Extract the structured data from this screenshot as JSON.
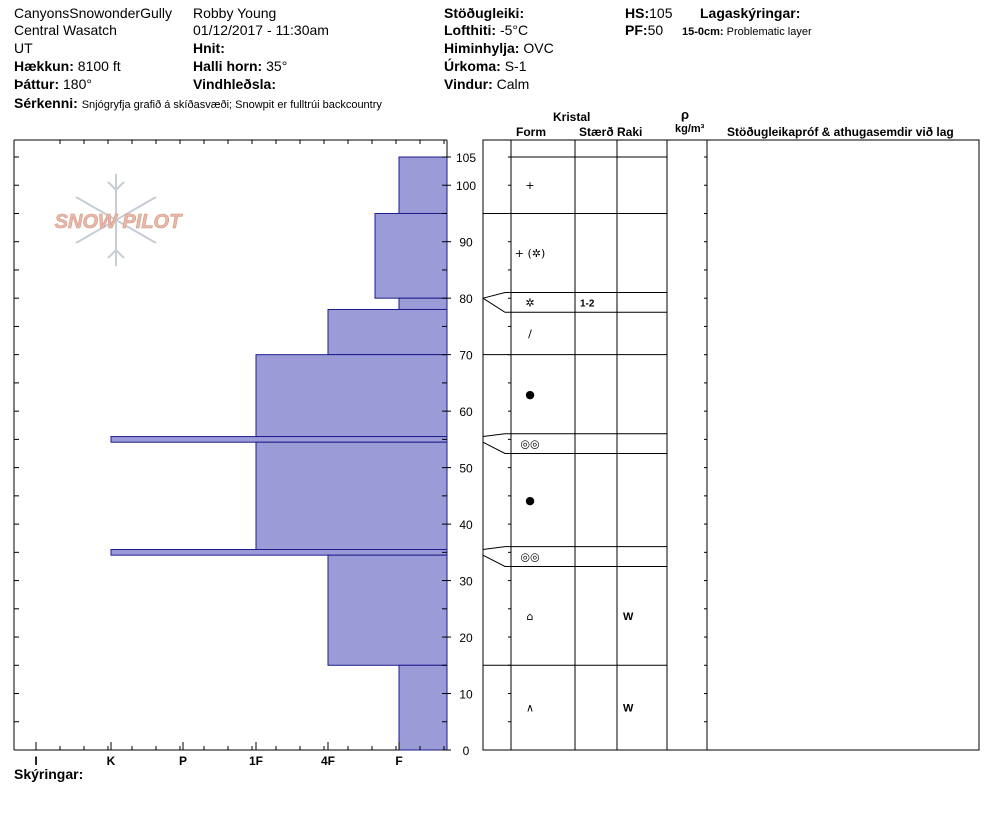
{
  "header": {
    "location": "CanyonsSnowonderGully",
    "range": "Central Wasatch",
    "state": "UT",
    "elevation_label": "Hækkun:",
    "elevation_value": "8100 ft",
    "aspect_label": "Þáttur:",
    "aspect_value": "180°",
    "observer": "Robby Young",
    "datetime": "01/12/2017 - 11:30am",
    "coords_label": "Hnit:",
    "slope_label": "Halli horn:",
    "slope_value": "35°",
    "wind_load_label": "Vindhleðsla:",
    "stability_label": "Stöðugleiki:",
    "air_temp_label": "Lofthiti:",
    "air_temp_value": "-5°C",
    "sky_label": "Himinhylja:",
    "sky_value": "OVC",
    "precip_label": "Úrkoma:",
    "precip_value": "S-1",
    "wind_label": "Vindur:",
    "wind_value": "Calm",
    "hs_label": "HS:",
    "hs_value": "105",
    "pf_label": "PF:",
    "pf_value": "50",
    "layer_notes_label": "Lagaskýringar:",
    "layer_note_depth": "15-0cm:",
    "layer_note_text": "Problematic layer",
    "features_label": "Sérkenni:",
    "features_text": "Snjógryfja grafið á skíðasvæði; Snowpit er fulltrúi backcountry"
  },
  "columns": {
    "kristal": "Kristal",
    "form": "Form",
    "size": "Stærð",
    "moisture": "Raki",
    "rho": "ρ",
    "density_unit": "kg/m³",
    "stability_tests": "Stöðugleikapróf & athugasemdir við lag"
  },
  "footer": {
    "legend_label": "Skýringar:"
  },
  "logo": {
    "text": "SNOW PILOT"
  },
  "chart_data": {
    "type": "bar",
    "orientation": "horizontal",
    "y_axis": {
      "ylim": [
        0,
        105
      ],
      "ticks": [
        0,
        10,
        20,
        30,
        40,
        50,
        60,
        70,
        80,
        90,
        100,
        105
      ]
    },
    "x_axis": {
      "categories": [
        "I",
        "K",
        "P",
        "1F",
        "4F",
        "F"
      ],
      "reverse": true
    },
    "hardness_profile": [
      {
        "top": 105,
        "bottom": 95,
        "hardness": "F"
      },
      {
        "top": 95,
        "bottom": 80,
        "hardness": "F+"
      },
      {
        "top": 80,
        "bottom": 78,
        "hardness": "F"
      },
      {
        "top": 78,
        "bottom": 70,
        "hardness": "4F"
      },
      {
        "top": 70,
        "bottom": 55.5,
        "hardness": "1F"
      },
      {
        "top": 55.5,
        "bottom": 54.5,
        "hardness": "K+"
      },
      {
        "top": 54.5,
        "bottom": 35.5,
        "hardness": "1F"
      },
      {
        "top": 35.5,
        "bottom": 34.5,
        "hardness": "K+"
      },
      {
        "top": 34.5,
        "bottom": 15,
        "hardness": "4F"
      },
      {
        "top": 15,
        "bottom": 0,
        "hardness": "F"
      }
    ],
    "layers": [
      {
        "top": 105,
        "bottom": 95,
        "form": "+",
        "size": "",
        "moisture": ""
      },
      {
        "top": 95,
        "bottom": 81,
        "form": "+ (✲)",
        "size": "",
        "moisture": ""
      },
      {
        "top": 81,
        "bottom": 77.5,
        "form": "✲",
        "size": "1-2",
        "moisture": ""
      },
      {
        "top": 77.5,
        "bottom": 70,
        "form": "/",
        "size": "",
        "moisture": ""
      },
      {
        "top": 70,
        "bottom": 56,
        "form": "●",
        "size": "",
        "moisture": ""
      },
      {
        "top": 56,
        "bottom": 52.5,
        "form": "◎◎",
        "size": "",
        "moisture": ""
      },
      {
        "top": 52.5,
        "bottom": 36,
        "form": "●",
        "size": "",
        "moisture": ""
      },
      {
        "top": 36,
        "bottom": 32.5,
        "form": "◎◎",
        "size": "",
        "moisture": ""
      },
      {
        "top": 32.5,
        "bottom": 15,
        "form": "⌂",
        "size": "",
        "moisture": "W"
      },
      {
        "top": 15,
        "bottom": 0,
        "form": "∧",
        "size": "",
        "moisture": "W"
      }
    ]
  },
  "colors": {
    "bar_fill": "#9b9bd8",
    "bar_stroke": "#1c1c8c",
    "logo": "#e8b8a8"
  }
}
